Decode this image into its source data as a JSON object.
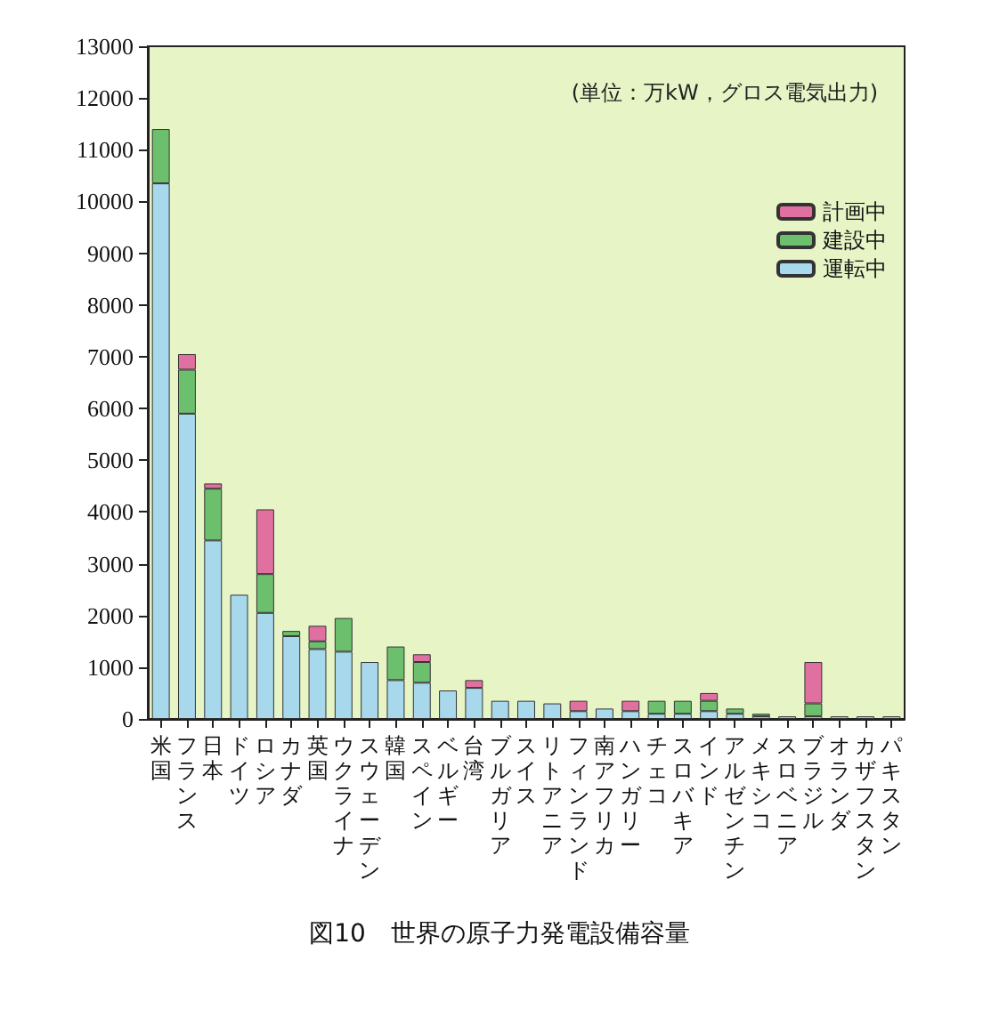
{
  "chart_data": {
    "type": "bar",
    "title": "図10　世界の原子力発電設備容量",
    "annotations": [
      "(単位：万kW，グロス電気出力)"
    ],
    "categories": [
      "米国",
      "フランス",
      "日本",
      "ドイツ",
      "ロシア",
      "カナダ",
      "英国",
      "ウクライナ",
      "スウェーデン",
      "韓国",
      "スペイン",
      "ベルギー",
      "台湾",
      "ブルガリア",
      "スイス",
      "リトアニア",
      "フィンランド",
      "南アフリカ",
      "ハンガリー",
      "チェコ",
      "スロバキア",
      "インド",
      "アルゼンチン",
      "メキシコ",
      "スロベニア",
      "ブラジル",
      "オランダ",
      "カザフスタン",
      "パキスタン"
    ],
    "stacked": true,
    "legend": "top right",
    "grid": false,
    "ylim": [
      0,
      13000
    ],
    "yticks": [
      0,
      1000,
      2000,
      3000,
      4000,
      5000,
      6000,
      7000,
      8000,
      9000,
      10000,
      11000,
      12000,
      13000
    ],
    "series": [
      {
        "name": "運転中",
        "color": "#a8d8ec",
        "values": [
          10350,
          5900,
          3450,
          2400,
          2050,
          1600,
          1350,
          1300,
          1100,
          750,
          700,
          550,
          600,
          350,
          350,
          300,
          150,
          200,
          150,
          100,
          100,
          150,
          100,
          50,
          50,
          50,
          50,
          50,
          50
        ]
      },
      {
        "name": "建設中",
        "color": "#6cbf6c",
        "values": [
          1050,
          850,
          1000,
          null,
          750,
          100,
          150,
          650,
          null,
          650,
          400,
          null,
          null,
          null,
          null,
          null,
          null,
          null,
          null,
          250,
          250,
          200,
          100,
          50,
          null,
          250,
          null,
          null,
          null
        ]
      },
      {
        "name": "計画中",
        "color": "#e070a0",
        "values": [
          null,
          300,
          100,
          null,
          1250,
          null,
          300,
          null,
          null,
          null,
          150,
          null,
          150,
          null,
          null,
          null,
          200,
          null,
          200,
          null,
          null,
          150,
          null,
          null,
          null,
          800,
          null,
          null,
          null
        ]
      }
    ]
  }
}
